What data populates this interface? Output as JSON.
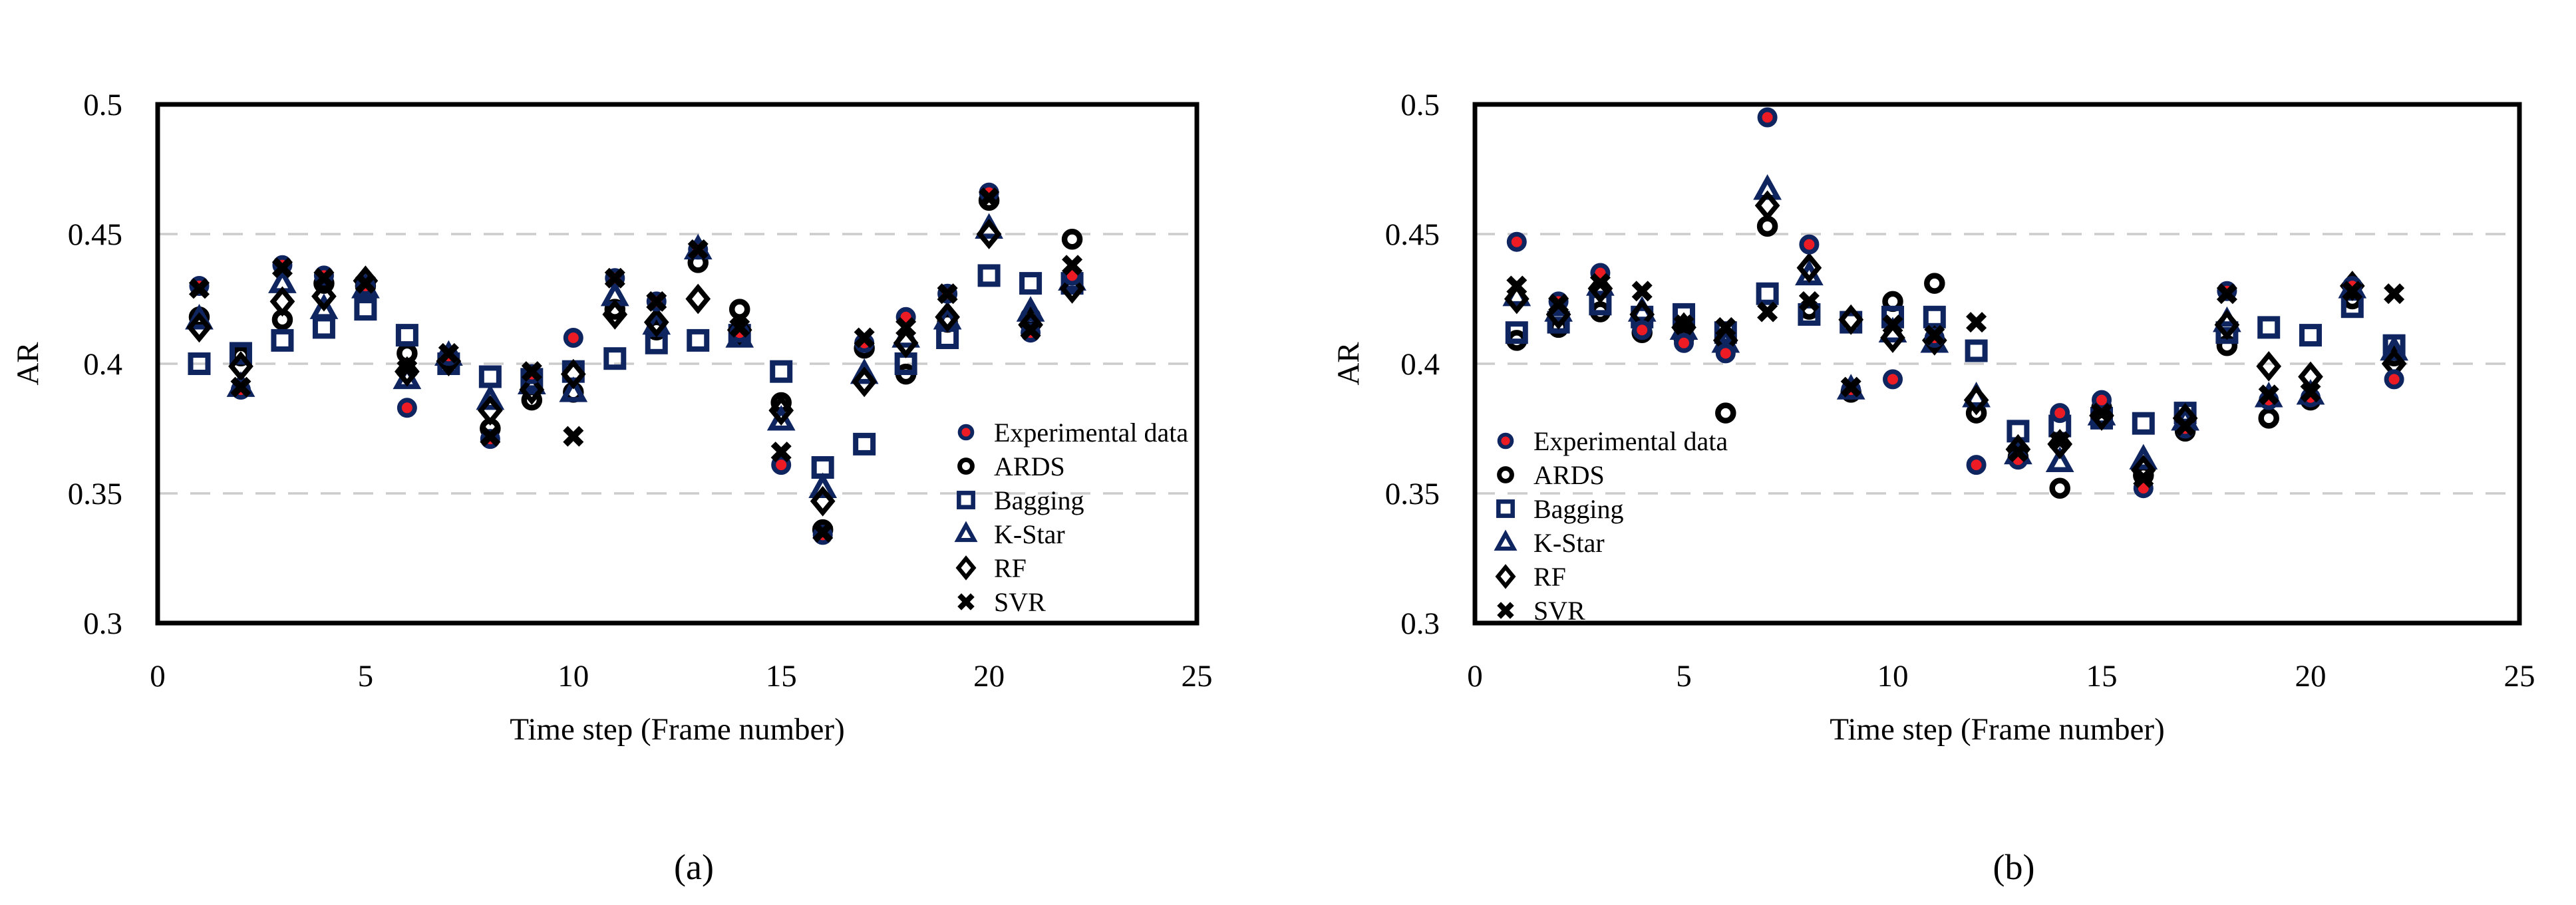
{
  "figure": {
    "background": "#ffffff",
    "colors": {
      "navy": "#0f2560",
      "red": "#ed1c24",
      "black": "#000000",
      "grid": "#cccccc",
      "axis": "#000000"
    },
    "series_meta": [
      {
        "name": "Experimental data",
        "marker": "filled-circle",
        "stroke": "navy",
        "fill": "red"
      },
      {
        "name": "ARDS",
        "marker": "open-circle",
        "stroke": "black",
        "fill": "none"
      },
      {
        "name": "Bagging",
        "marker": "open-square",
        "stroke": "navy",
        "fill": "none"
      },
      {
        "name": "K-Star",
        "marker": "open-triangle",
        "stroke": "navy",
        "fill": "none"
      },
      {
        "name": "RF",
        "marker": "open-diamond",
        "stroke": "black",
        "fill": "none"
      },
      {
        "name": "SVR",
        "marker": "x-cross",
        "stroke": "black",
        "fill": "none"
      }
    ]
  },
  "chart_data": [
    {
      "id": "a",
      "type": "scatter",
      "caption": "(a)",
      "xlabel": "Time step (Frame number)",
      "ylabel": "AR",
      "xlim": [
        0,
        25
      ],
      "ylim": [
        0.3,
        0.5
      ],
      "xticks": [
        0,
        5,
        10,
        15,
        20,
        25
      ],
      "yticks": [
        0.5,
        0.45,
        0.4,
        0.35,
        0.3
      ],
      "grid": "horizontal-dashed",
      "legend_position": "inside-right",
      "x": [
        1,
        2,
        3,
        4,
        5,
        6,
        7,
        8,
        9,
        10,
        11,
        12,
        13,
        14,
        15,
        16,
        17,
        18,
        19,
        20,
        21,
        22
      ],
      "series": [
        {
          "name": "Experimental data",
          "values": [
            0.43,
            0.39,
            0.438,
            0.434,
            0.43,
            0.383,
            0.403,
            0.371,
            0.396,
            0.41,
            0.433,
            0.424,
            0.444,
            0.412,
            0.361,
            0.334,
            0.408,
            0.418,
            0.427,
            0.466,
            0.412,
            0.434
          ]
        },
        {
          "name": "ARDS",
          "values": [
            0.418,
            0.403,
            0.417,
            0.431,
            0.43,
            0.404,
            0.402,
            0.375,
            0.386,
            0.389,
            0.421,
            0.413,
            0.439,
            0.421,
            0.385,
            0.336,
            0.406,
            0.396,
            0.416,
            0.463,
            0.418,
            0.448
          ]
        },
        {
          "name": "Bagging",
          "values": [
            0.4,
            0.404,
            0.409,
            0.414,
            0.421,
            0.411,
            0.4,
            0.395,
            0.394,
            0.397,
            0.402,
            0.408,
            0.409,
            0.411,
            0.397,
            0.36,
            0.369,
            0.4,
            0.41,
            0.434,
            0.431,
            0.431
          ]
        },
        {
          "name": "K-Star",
          "values": [
            0.417,
            0.391,
            0.431,
            0.421,
            0.429,
            0.394,
            0.403,
            0.386,
            0.392,
            0.389,
            0.426,
            0.415,
            0.444,
            0.41,
            0.378,
            0.352,
            0.396,
            0.41,
            0.417,
            0.452,
            0.42,
            0.432
          ]
        },
        {
          "name": "RF",
          "values": [
            0.414,
            0.399,
            0.424,
            0.426,
            0.432,
            0.397,
            0.401,
            0.382,
            0.39,
            0.396,
            0.419,
            0.416,
            0.425,
            0.413,
            0.382,
            0.347,
            0.393,
            0.408,
            0.418,
            0.45,
            0.415,
            0.429
          ]
        },
        {
          "name": "SVR",
          "values": [
            0.429,
            0.391,
            0.437,
            0.433,
            0.431,
            0.398,
            0.404,
            0.372,
            0.397,
            0.372,
            0.433,
            0.424,
            0.444,
            0.414,
            0.366,
            0.335,
            0.41,
            0.414,
            0.427,
            0.464,
            0.413,
            0.438
          ]
        }
      ]
    },
    {
      "id": "b",
      "type": "scatter",
      "caption": "(b)",
      "xlabel": "Time step (Frame number)",
      "ylabel": "AR",
      "xlim": [
        0,
        25
      ],
      "ylim": [
        0.3,
        0.5
      ],
      "xticks": [
        0,
        5,
        10,
        15,
        20,
        25
      ],
      "yticks": [
        0.5,
        0.45,
        0.4,
        0.35,
        0.3
      ],
      "grid": "horizontal-dashed",
      "legend_position": "inside-left",
      "x": [
        1,
        2,
        3,
        4,
        5,
        6,
        7,
        8,
        9,
        10,
        11,
        12,
        13,
        14,
        15,
        16,
        17,
        18,
        19,
        20,
        21,
        22
      ],
      "series": [
        {
          "name": "Experimental data",
          "values": [
            0.447,
            0.424,
            0.435,
            0.413,
            0.408,
            0.404,
            0.495,
            0.446,
            0.39,
            0.394,
            0.41,
            0.361,
            0.363,
            0.381,
            0.386,
            0.352,
            0.375,
            0.428,
            0.386,
            0.387,
            0.43,
            0.394
          ]
        },
        {
          "name": "ARDS",
          "values": [
            0.409,
            0.414,
            0.42,
            0.412,
            0.41,
            0.381,
            0.453,
            0.421,
            0.389,
            0.424,
            0.431,
            0.381,
            0.364,
            0.352,
            0.383,
            0.357,
            0.374,
            0.407,
            0.379,
            0.386,
            0.425,
            0.403
          ]
        },
        {
          "name": "Bagging",
          "values": [
            0.412,
            0.416,
            0.423,
            0.418,
            0.419,
            0.412,
            0.427,
            0.419,
            0.416,
            0.418,
            0.418,
            0.405,
            0.374,
            0.376,
            0.379,
            0.377,
            0.381,
            0.412,
            0.414,
            0.411,
            0.422,
            0.407
          ]
        },
        {
          "name": "K-Star",
          "values": [
            0.426,
            0.42,
            0.43,
            0.42,
            0.413,
            0.408,
            0.467,
            0.434,
            0.39,
            0.412,
            0.408,
            0.387,
            0.365,
            0.362,
            0.38,
            0.363,
            0.378,
            0.416,
            0.387,
            0.388,
            0.429,
            0.405
          ]
        },
        {
          "name": "RF",
          "values": [
            0.425,
            0.419,
            0.429,
            0.419,
            0.414,
            0.409,
            0.461,
            0.437,
            0.417,
            0.41,
            0.409,
            0.386,
            0.367,
            0.369,
            0.38,
            0.359,
            0.379,
            0.415,
            0.399,
            0.395,
            0.43,
            0.4
          ]
        },
        {
          "name": "SVR",
          "values": [
            0.43,
            0.423,
            0.431,
            0.428,
            0.415,
            0.414,
            0.42,
            0.424,
            0.391,
            0.415,
            0.411,
            0.416,
            0.366,
            0.37,
            0.381,
            0.356,
            0.376,
            0.427,
            0.388,
            0.389,
            0.428,
            0.427
          ]
        }
      ]
    }
  ]
}
